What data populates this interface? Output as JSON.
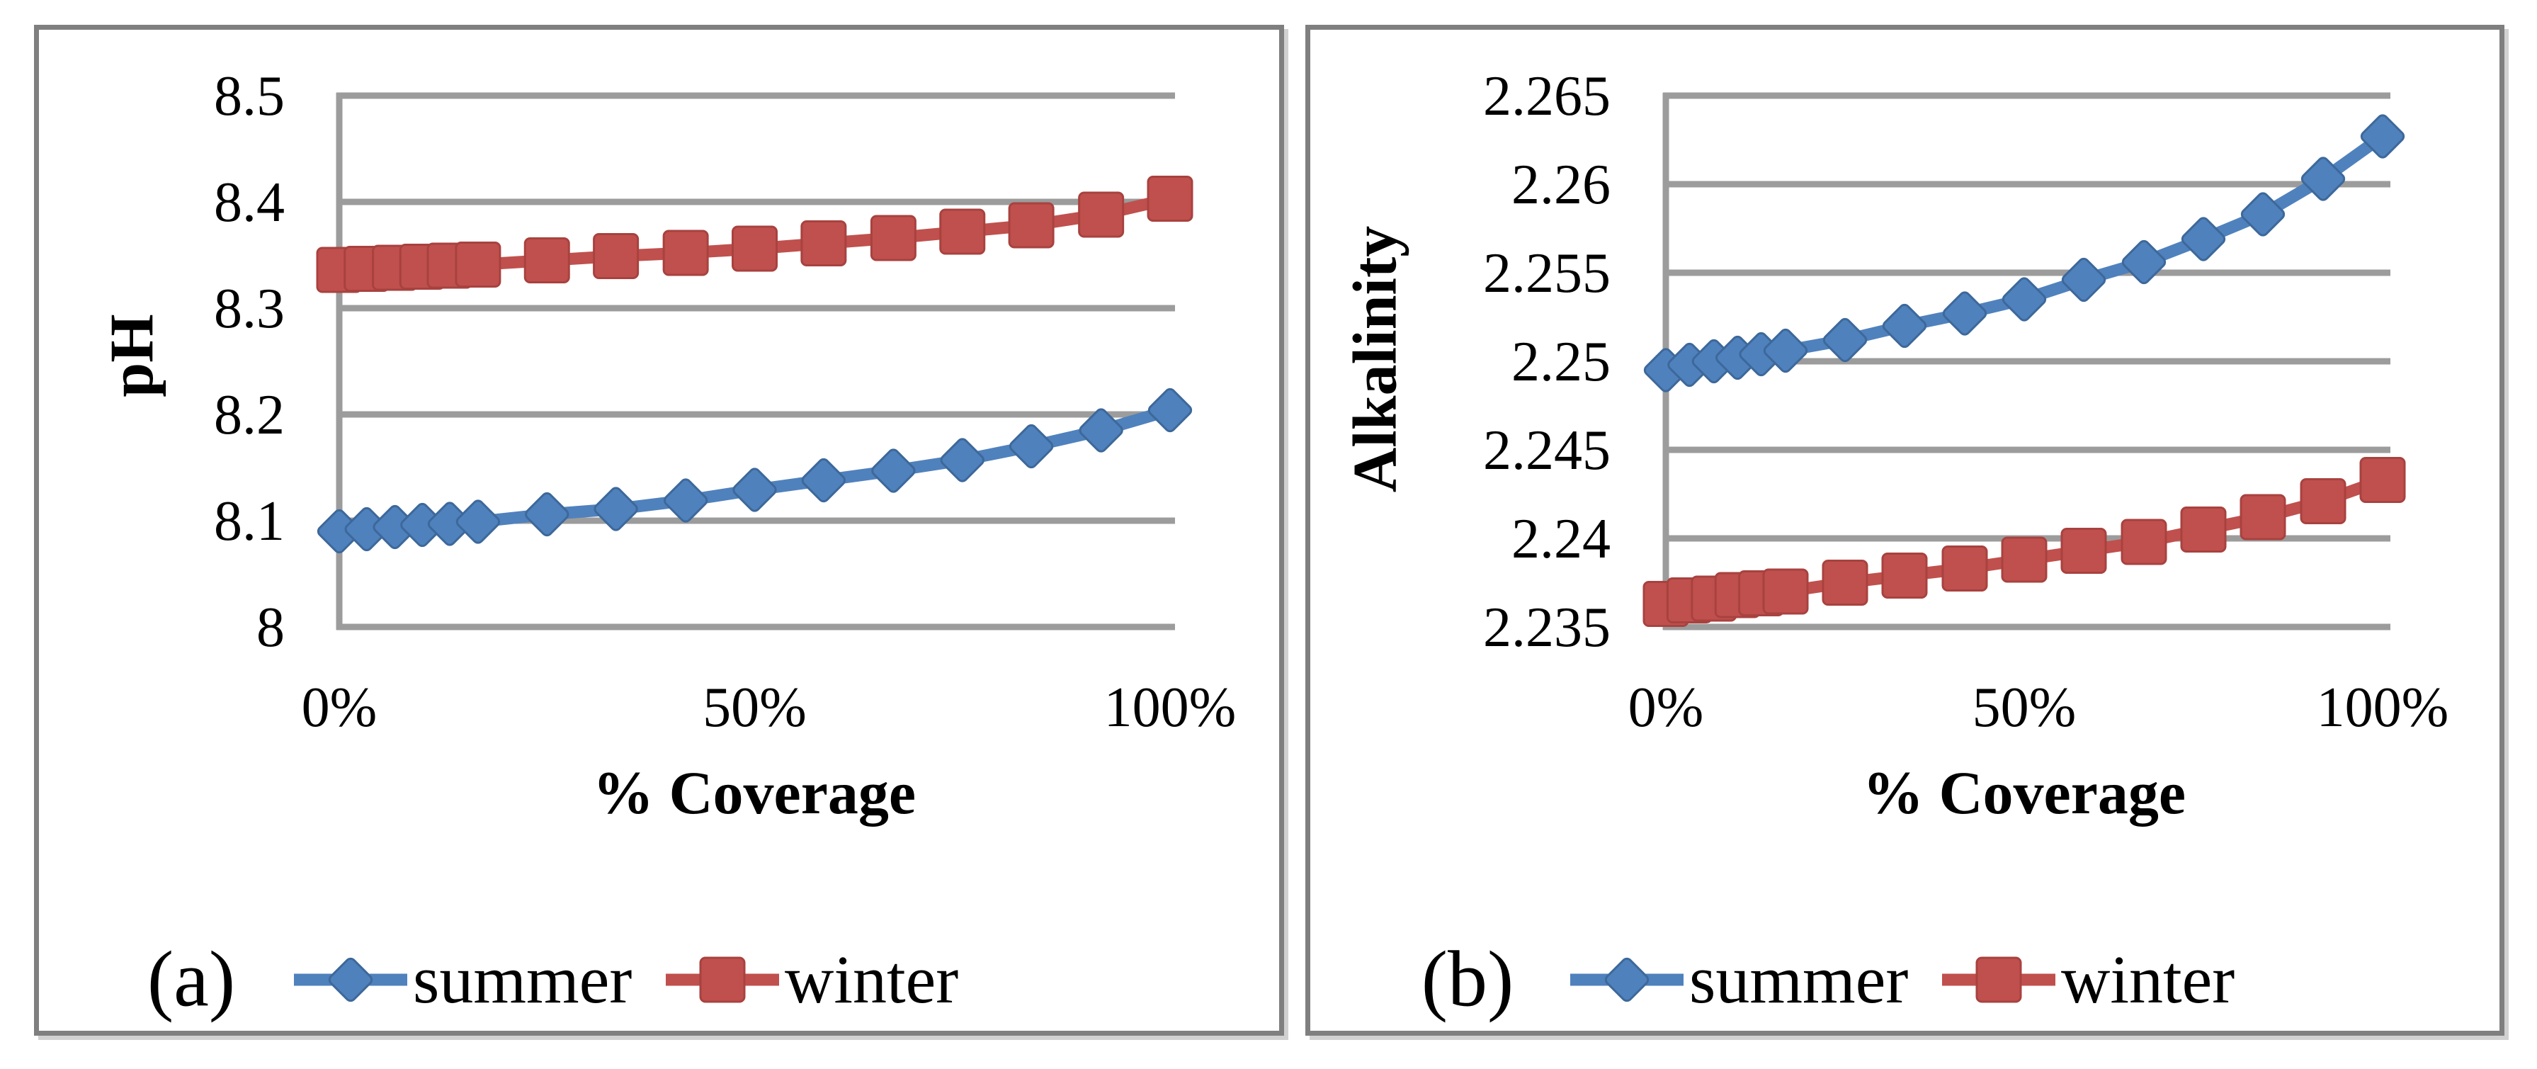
{
  "figure": {
    "panels": [
      {
        "label": "(a)"
      },
      {
        "label": "(b)"
      }
    ],
    "legend": [
      {
        "label": "summer",
        "marker": "diamond"
      },
      {
        "label": "winter",
        "marker": "square"
      }
    ]
  },
  "colors": {
    "summer": "#4F81BD",
    "summer_edge": "#3D689A",
    "winter": "#C0504D",
    "winter_edge": "#A8423F",
    "gridline": "#9c9c9c",
    "axis": "#9c9c9c",
    "panel_border": "#7f7f7f",
    "text": "#000000"
  },
  "chart_data": [
    {
      "type": "line",
      "title": "",
      "xlabel": "% Coverage",
      "ylabel": "pH",
      "xlim": [
        0,
        100
      ],
      "ylim": [
        8,
        8.5
      ],
      "x_tick_labels": [
        "0%",
        "50%",
        "100%"
      ],
      "x_tick_values": [
        0,
        50,
        100
      ],
      "y_tick_labels": [
        "8.5",
        "8.4",
        "8.3",
        "8.2",
        "8.1",
        "8"
      ],
      "y_tick_values": [
        8.5,
        8.4,
        8.3,
        8.2,
        8.1,
        8
      ],
      "grid": "horizontal",
      "legend_position": "bottom",
      "x": [
        0,
        3.3,
        6.7,
        10,
        13.3,
        16.7,
        25,
        33.3,
        41.7,
        50,
        58.3,
        66.7,
        75,
        83.3,
        91.7,
        100
      ],
      "series": [
        {
          "name": "summer",
          "marker": "diamond",
          "values": [
            8.09,
            8.092,
            8.094,
            8.096,
            8.097,
            8.099,
            8.106,
            8.111,
            8.119,
            8.129,
            8.138,
            8.147,
            8.157,
            8.17,
            8.185,
            8.204
          ]
        },
        {
          "name": "winter",
          "marker": "square",
          "values": [
            8.336,
            8.337,
            8.338,
            8.339,
            8.34,
            8.341,
            8.345,
            8.349,
            8.352,
            8.356,
            8.361,
            8.366,
            8.372,
            8.378,
            8.388,
            8.403
          ]
        }
      ]
    },
    {
      "type": "line",
      "title": "",
      "xlabel": "% Coverage",
      "ylabel": "Alkalinity",
      "xlim": [
        0,
        100
      ],
      "ylim": [
        2.235,
        2.265
      ],
      "x_tick_labels": [
        "0%",
        "50%",
        "100%"
      ],
      "x_tick_values": [
        0,
        50,
        100
      ],
      "y_tick_labels": [
        "2.265",
        "2.26",
        "2.255",
        "2.25",
        "2.245",
        "2.24",
        "2.235"
      ],
      "y_tick_values": [
        2.265,
        2.26,
        2.255,
        2.25,
        2.245,
        2.24,
        2.235
      ],
      "grid": "horizontal",
      "legend_position": "bottom",
      "x": [
        0,
        3.3,
        6.7,
        10,
        13.3,
        16.7,
        25,
        33.3,
        41.7,
        50,
        58.3,
        66.7,
        75,
        83.3,
        91.7,
        100
      ],
      "series": [
        {
          "name": "summer",
          "marker": "diamond",
          "values": [
            2.2495,
            2.2498,
            2.25,
            2.2502,
            2.2504,
            2.2506,
            2.2512,
            2.252,
            2.2527,
            2.2535,
            2.2546,
            2.2556,
            2.2569,
            2.2583,
            2.2603,
            2.2627
          ]
        },
        {
          "name": "winter",
          "marker": "square",
          "values": [
            2.2363,
            2.2365,
            2.2366,
            2.2368,
            2.2369,
            2.237,
            2.2375,
            2.2379,
            2.2383,
            2.2388,
            2.2393,
            2.2398,
            2.2405,
            2.2412,
            2.2421,
            2.2433
          ]
        }
      ]
    }
  ]
}
